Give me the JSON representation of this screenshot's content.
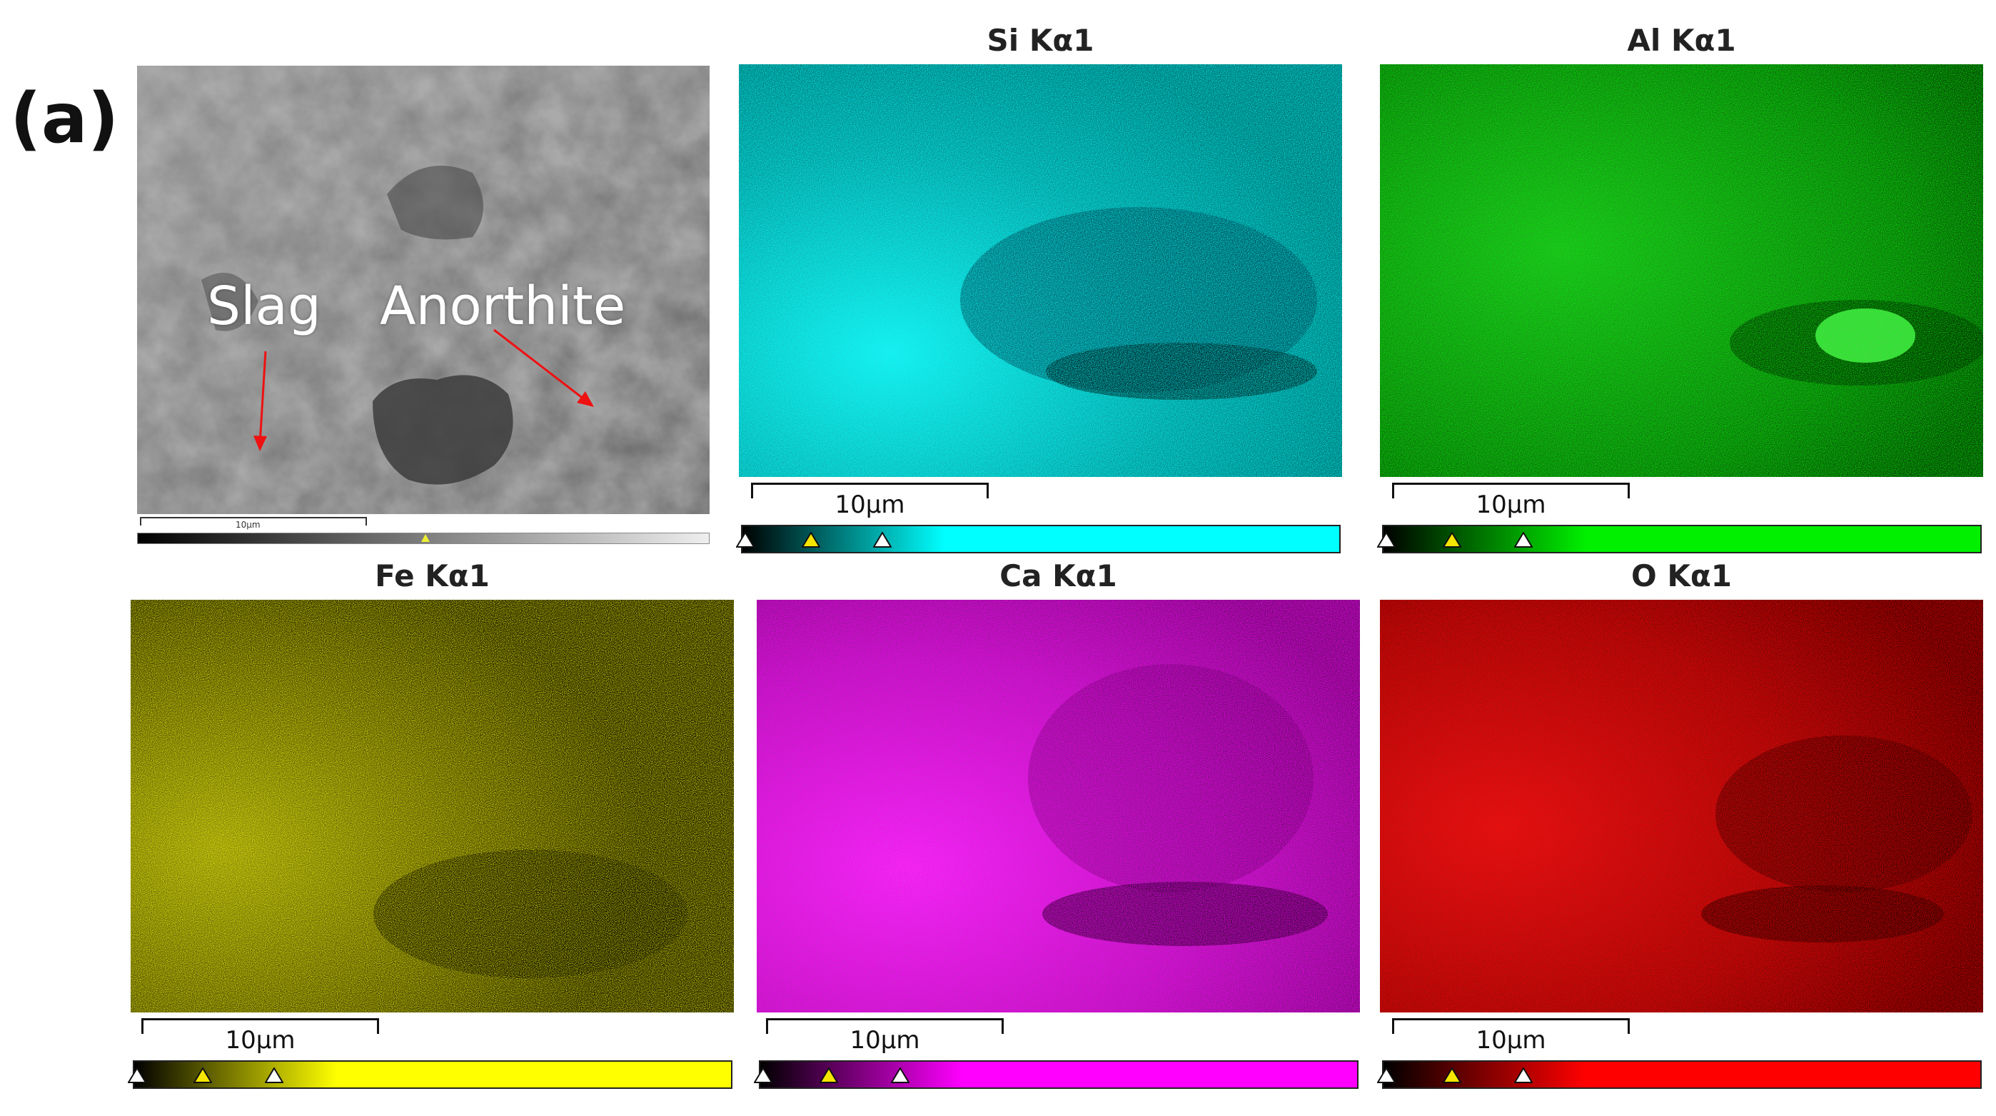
{
  "figure": {
    "panel_label": "(a)",
    "sem": {
      "annotations": [
        "Slag",
        "Anorthite"
      ],
      "scalebar_label": "10µm"
    },
    "maps": [
      {
        "title": "Si Kα1",
        "scalebar_label": "10µm",
        "color": "#00ffff"
      },
      {
        "title": "Al Kα1",
        "scalebar_label": "10µm",
        "color": "#00f000"
      },
      {
        "title": "Fe Kα1",
        "scalebar_label": "10µm",
        "color": "#ffff00"
      },
      {
        "title": "Ca Kα1",
        "scalebar_label": "10µm",
        "color": "#ff00ff"
      },
      {
        "title": "O Kα1",
        "scalebar_label": "10µm",
        "color": "#ff0000"
      }
    ]
  }
}
